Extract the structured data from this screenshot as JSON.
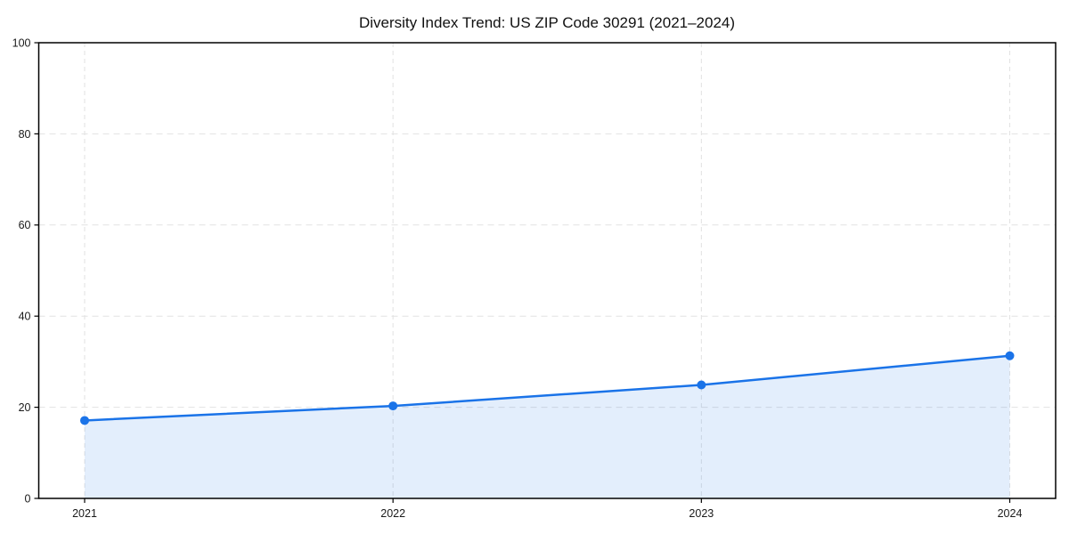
{
  "chart_data": {
    "type": "area",
    "title": "Diversity Index Trend: US ZIP Code 30291 (2021–2024)",
    "x": [
      2021,
      2022,
      2023,
      2024
    ],
    "xtick_labels": [
      "2021",
      "2022",
      "2023",
      "2024"
    ],
    "series": [
      {
        "name": "Diversity Index",
        "values": [
          17.1,
          20.3,
          24.9,
          31.3
        ]
      }
    ],
    "xlabel": "",
    "ylabel": "",
    "ylim": [
      0,
      100
    ],
    "yticks": [
      0,
      20,
      40,
      60,
      80,
      100
    ],
    "grid": "dashed, horizontal and vertical",
    "legend_position": "none",
    "marker": "circle",
    "colors": {
      "line": "#1a73e8",
      "marker": "#1a73e8",
      "fill": "#1a73e8",
      "grid": "#e2e2e2",
      "axis": "#000000",
      "text": "#1a1a1a",
      "background": "#ffffff"
    }
  }
}
